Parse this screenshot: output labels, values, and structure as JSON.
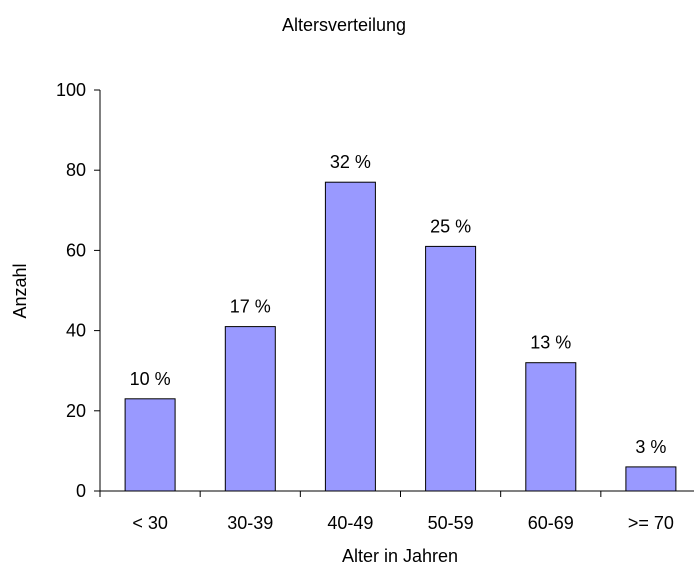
{
  "chart_data": {
    "type": "bar",
    "title": "Altersverteilung",
    "xlabel": "Alter in Jahren",
    "ylabel": "Anzahl",
    "categories": [
      "< 30",
      "30-39",
      "40-49",
      "50-59",
      "60-69",
      ">= 70"
    ],
    "values": [
      23,
      41,
      77,
      61,
      32,
      6
    ],
    "data_labels": [
      "10 %",
      "17 %",
      "32 %",
      "25 %",
      "13 %",
      "3 %"
    ],
    "ylim": [
      0,
      100
    ],
    "yticks": [
      0,
      20,
      40,
      60,
      80,
      100
    ],
    "ytick_labels": [
      "0",
      "20",
      "40",
      "60",
      "80",
      "100"
    ],
    "grid": false,
    "legend": "none",
    "colors": {
      "bar_fill": "#9999ff",
      "bar_stroke": "#000000",
      "axis": "#000000"
    }
  }
}
